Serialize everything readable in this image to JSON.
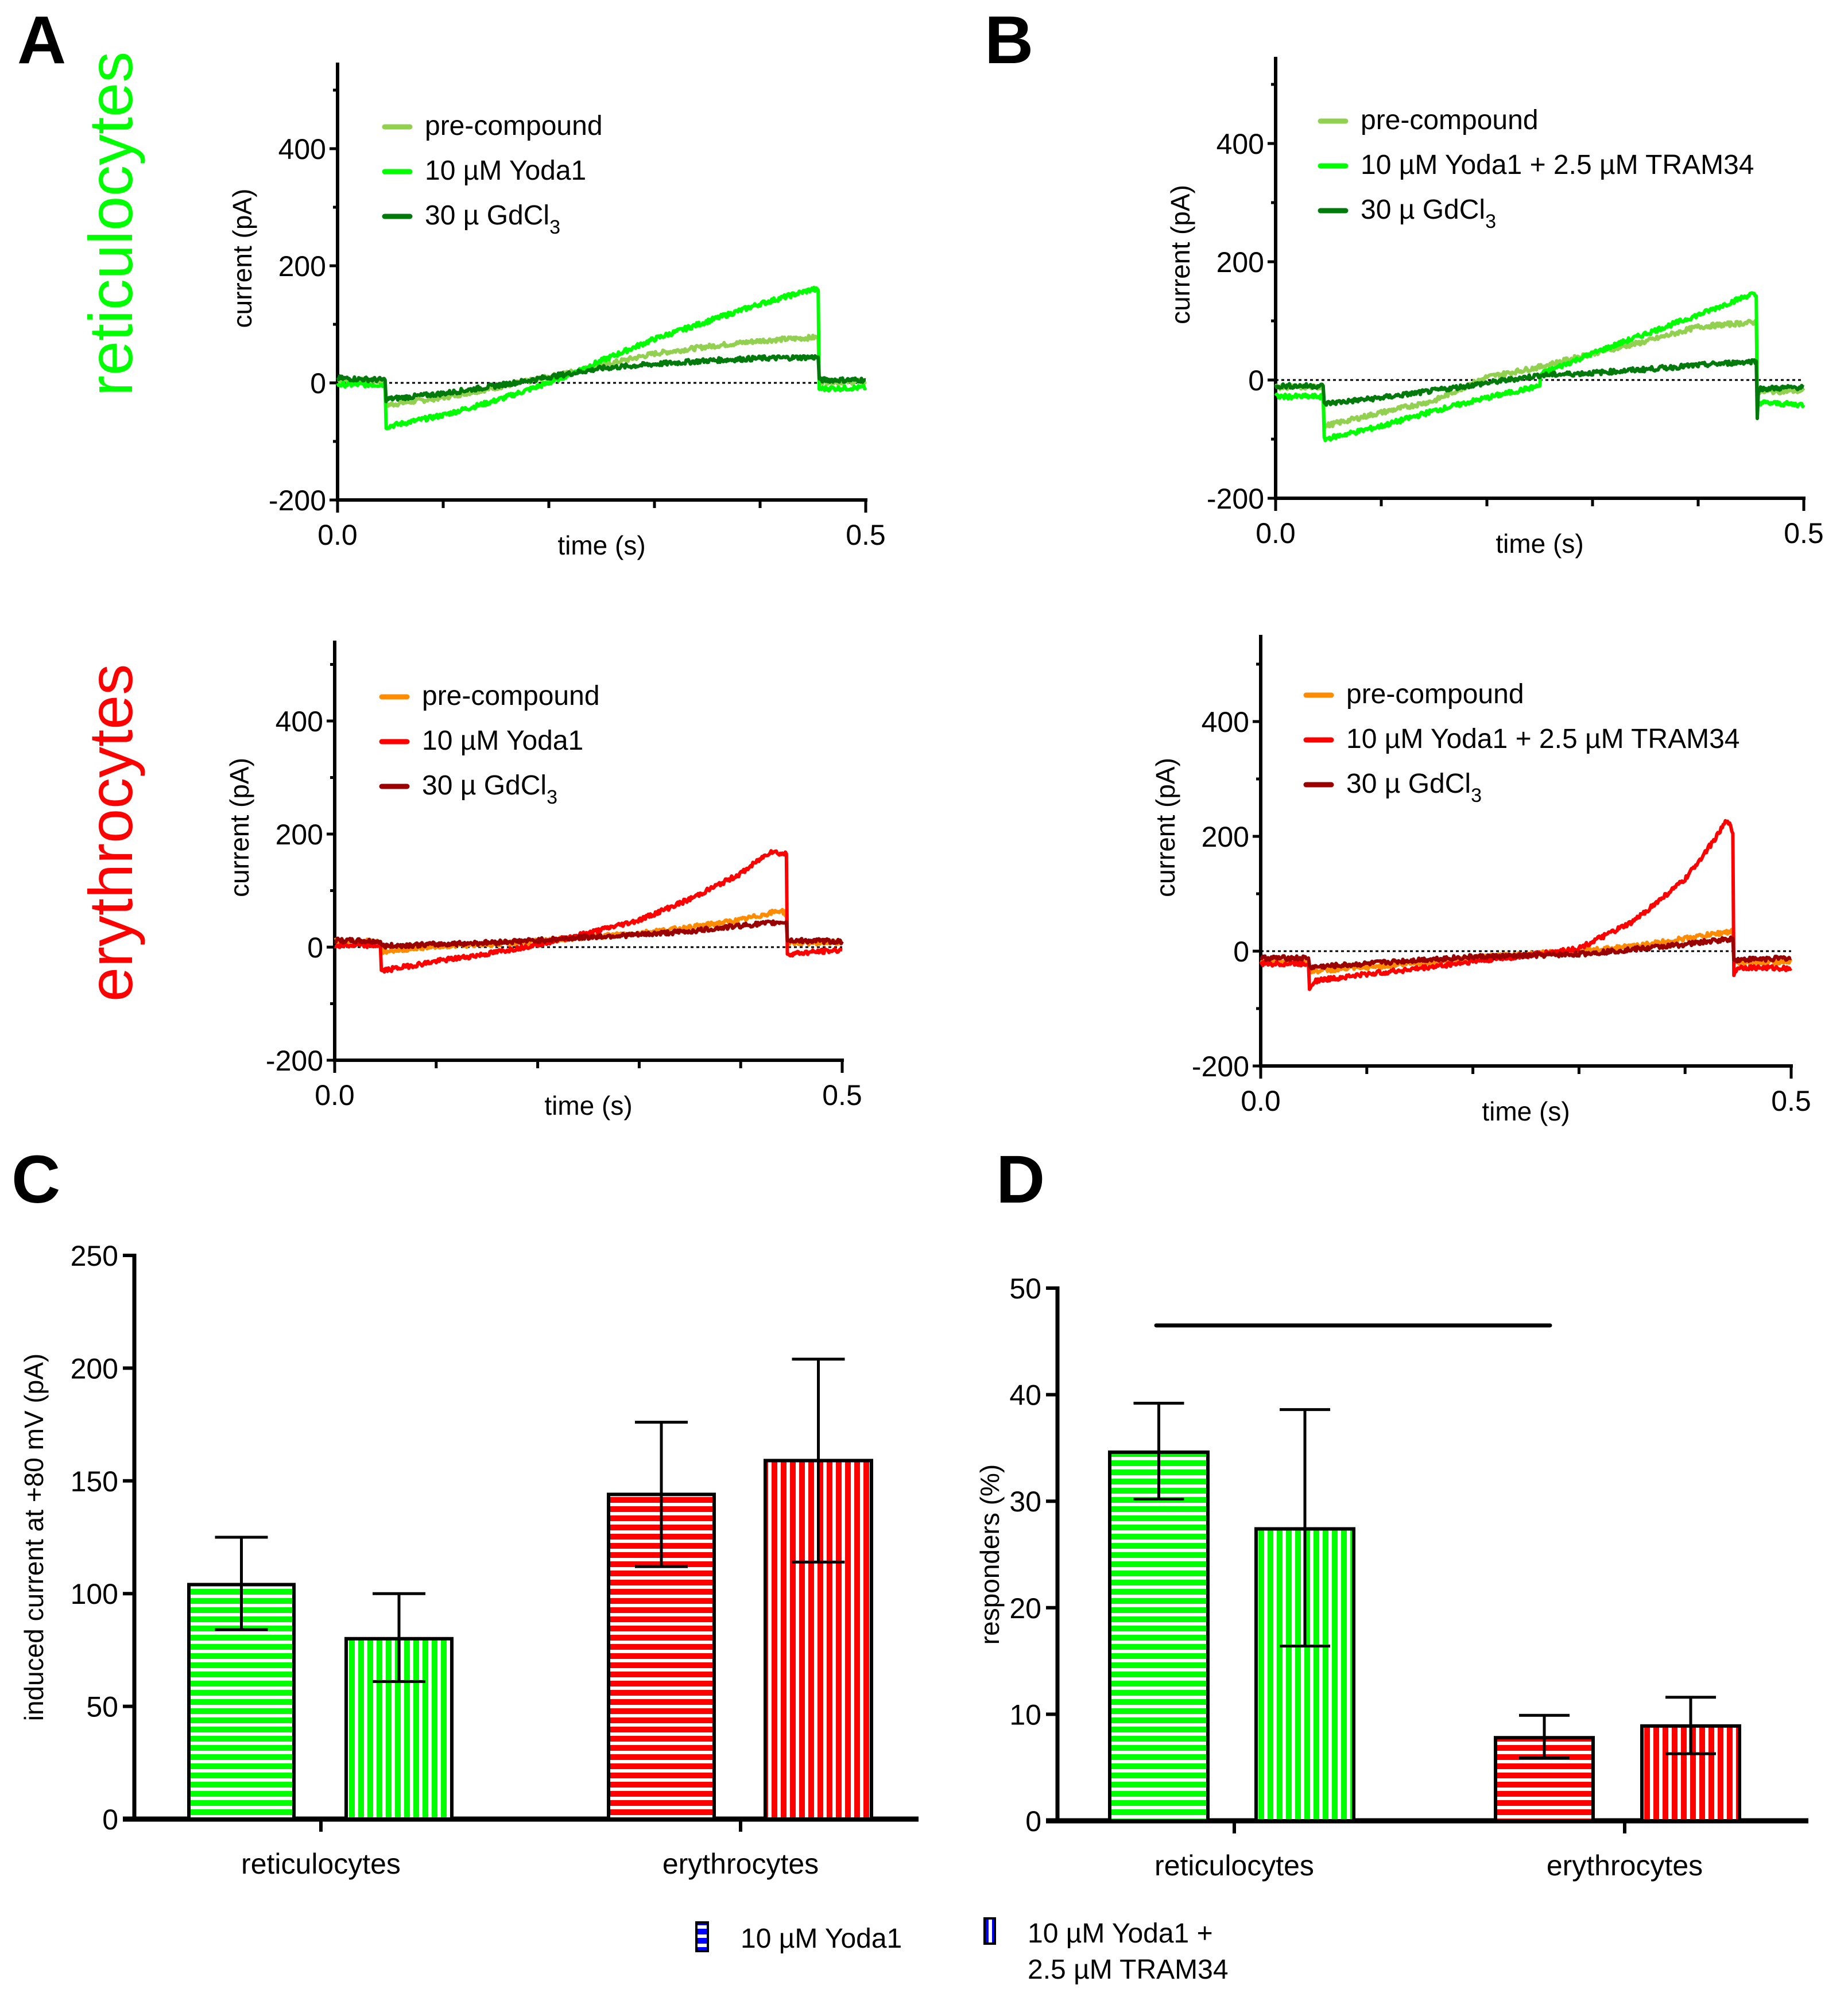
{
  "figure": {
    "panel_letters": [
      "A",
      "B",
      "C",
      "D"
    ],
    "row_labels": [
      {
        "text": "reticulocytes",
        "color": "#00FF00"
      },
      {
        "text": "erythrocytes",
        "color": "#FF0000"
      }
    ],
    "bottom_legend": [
      {
        "label": "10 µM Yoda1",
        "pattern": "horizontal",
        "color": "#0000FF"
      },
      {
        "label_line1": "10 µM Yoda1 +",
        "label_line2": "2.5 µM TRAM34",
        "pattern": "vertical",
        "color": "#0000FF"
      }
    ]
  },
  "chart_data": [
    {
      "id": "A-reticulocytes",
      "type": "line",
      "panel": "A",
      "xlabel": "time (s)",
      "ylabel": "current (pA)",
      "xlim": [
        0,
        0.5
      ],
      "ylim": [
        -200,
        550
      ],
      "xticks": [
        "0.0",
        "0.5"
      ],
      "yticks": [
        "-200",
        "0",
        "200",
        "400"
      ],
      "zero_line": "dotted",
      "legend_position": "top-left",
      "series": [
        {
          "name": "pre-compound",
          "color": "#92D050",
          "x": [
            0,
            0.045,
            0.046,
            0.1,
            0.15,
            0.2,
            0.25,
            0.3,
            0.35,
            0.4,
            0.455,
            0.456,
            0.5
          ],
          "y": [
            5,
            3,
            -38,
            -25,
            -8,
            10,
            30,
            50,
            62,
            72,
            78,
            2,
            2
          ]
        },
        {
          "name": "10 µM Yoda1",
          "sub": "",
          "color": "#00FF00",
          "x": [
            0,
            0.045,
            0.046,
            0.1,
            0.15,
            0.2,
            0.25,
            0.3,
            0.35,
            0.4,
            0.45,
            0.455,
            0.456,
            0.5
          ],
          "y": [
            -3,
            -3,
            -75,
            -55,
            -30,
            0,
            38,
            75,
            105,
            135,
            160,
            158,
            -10,
            -8
          ]
        },
        {
          "name": "30 µ GdCl",
          "sub": "3",
          "color": "#007A0A",
          "x": [
            0,
            0.045,
            0.046,
            0.1,
            0.15,
            0.2,
            0.25,
            0.3,
            0.35,
            0.4,
            0.455,
            0.456,
            0.5
          ],
          "y": [
            8,
            5,
            -28,
            -18,
            -5,
            10,
            25,
            32,
            38,
            42,
            44,
            5,
            5
          ]
        }
      ]
    },
    {
      "id": "B-reticulocytes",
      "type": "line",
      "panel": "B",
      "xlabel": "time (s)",
      "ylabel": "current (pA)",
      "xlim": [
        0,
        0.5
      ],
      "ylim": [
        -200,
        550
      ],
      "xticks": [
        "0.0",
        "0.5"
      ],
      "yticks": [
        "-200",
        "0",
        "200",
        "400"
      ],
      "zero_line": "dotted",
      "legend_position": "top-left",
      "series": [
        {
          "name": "pre-compound",
          "color": "#92D050",
          "x": [
            0,
            0.045,
            0.046,
            0.1,
            0.15,
            0.2,
            0.25,
            0.3,
            0.35,
            0.4,
            0.455,
            0.456,
            0.5
          ],
          "y": [
            -12,
            -12,
            -78,
            -55,
            -35,
            5,
            22,
            45,
            65,
            90,
            98,
            -20,
            -18
          ]
        },
        {
          "name": "10 µM Yoda1 + 2.5 µM TRAM34",
          "color": "#00FF00",
          "x": [
            0,
            0.045,
            0.046,
            0.1,
            0.15,
            0.2,
            0.25,
            0.251,
            0.3,
            0.35,
            0.4,
            0.45,
            0.455,
            0.456,
            0.5
          ],
          "y": [
            -28,
            -28,
            -100,
            -78,
            -52,
            -30,
            -10,
            10,
            45,
            78,
            110,
            145,
            142,
            -38,
            -42
          ]
        },
        {
          "name": "30 µ GdCl",
          "sub": "3",
          "color": "#007A0A",
          "x": [
            0,
            0.045,
            0.046,
            0.1,
            0.15,
            0.2,
            0.25,
            0.3,
            0.35,
            0.4,
            0.455,
            0.456,
            0.457,
            0.5
          ],
          "y": [
            -10,
            -10,
            -40,
            -30,
            -18,
            -5,
            8,
            12,
            18,
            25,
            32,
            -65,
            -15,
            -12
          ]
        }
      ]
    },
    {
      "id": "A-erythrocytes",
      "type": "line",
      "panel": "A",
      "xlabel": "time (s)",
      "ylabel": "current (pA)",
      "xlim": [
        0,
        0.5
      ],
      "ylim": [
        -200,
        550
      ],
      "xticks": [
        "0.0",
        "0.5"
      ],
      "yticks": [
        "-200",
        "0",
        "200",
        "400"
      ],
      "zero_line": "dotted",
      "legend_position": "top-left",
      "series": [
        {
          "name": "pre-compound",
          "color": "#FF8C00",
          "x": [
            0,
            0.045,
            0.046,
            0.1,
            0.15,
            0.2,
            0.25,
            0.3,
            0.35,
            0.4,
            0.44,
            0.445,
            0.446,
            0.5
          ],
          "y": [
            10,
            10,
            -8,
            2,
            5,
            10,
            18,
            25,
            35,
            48,
            65,
            58,
            8,
            8
          ]
        },
        {
          "name": "10 µM Yoda1",
          "color": "#FF0000",
          "x": [
            0,
            0.045,
            0.046,
            0.1,
            0.15,
            0.2,
            0.25,
            0.3,
            0.35,
            0.4,
            0.43,
            0.44,
            0.445,
            0.446,
            0.5
          ],
          "y": [
            3,
            3,
            -42,
            -25,
            -12,
            5,
            25,
            48,
            85,
            130,
            170,
            165,
            165,
            -12,
            -5
          ]
        },
        {
          "name": "30 µ GdCl",
          "sub": "3",
          "color": "#9B0000",
          "x": [
            0,
            0.045,
            0.046,
            0.1,
            0.15,
            0.2,
            0.25,
            0.3,
            0.35,
            0.4,
            0.445,
            0.446,
            0.5
          ],
          "y": [
            12,
            10,
            2,
            5,
            8,
            12,
            18,
            22,
            28,
            38,
            45,
            12,
            10
          ]
        }
      ]
    },
    {
      "id": "B-erythrocytes",
      "type": "line",
      "panel": "B",
      "xlabel": "time (s)",
      "ylabel": "current (pA)",
      "xlim": [
        0,
        0.5
      ],
      "ylim": [
        -200,
        550
      ],
      "xticks": [
        "0.0",
        "0.5"
      ],
      "yticks": [
        "-200",
        "0",
        "200",
        "400"
      ],
      "zero_line": "dotted",
      "legend_position": "top-left",
      "series": [
        {
          "name": "pre-compound",
          "color": "#FF8C00",
          "x": [
            0,
            0.045,
            0.046,
            0.1,
            0.15,
            0.2,
            0.25,
            0.3,
            0.35,
            0.4,
            0.445,
            0.446,
            0.5
          ],
          "y": [
            -18,
            -18,
            -35,
            -28,
            -20,
            -12,
            -5,
            0,
            8,
            22,
            35,
            -20,
            -18
          ]
        },
        {
          "name": "10 µM Yoda1 + 2.5 µM TRAM34",
          "color": "#FF0000",
          "x": [
            0,
            0.045,
            0.046,
            0.05,
            0.1,
            0.15,
            0.2,
            0.25,
            0.3,
            0.35,
            0.4,
            0.43,
            0.44,
            0.445,
            0.446,
            0.45,
            0.5
          ],
          "y": [
            -22,
            -22,
            -65,
            -52,
            -40,
            -30,
            -18,
            -8,
            5,
            50,
            125,
            200,
            230,
            205,
            -40,
            -28,
            -30
          ]
        },
        {
          "name": "30 µ GdCl",
          "sub": "3",
          "color": "#9B0000",
          "x": [
            0,
            0.045,
            0.046,
            0.1,
            0.15,
            0.2,
            0.25,
            0.3,
            0.35,
            0.4,
            0.445,
            0.446,
            0.5
          ],
          "y": [
            -12,
            -12,
            -28,
            -22,
            -15,
            -10,
            -8,
            -5,
            3,
            12,
            22,
            -15,
            -12
          ]
        }
      ]
    },
    {
      "id": "C",
      "type": "bar",
      "panel": "C",
      "title": "",
      "xlabel": "",
      "ylabel": "induced current at +80 mV (pA)",
      "ylim": [
        0,
        250
      ],
      "yticks": [
        "0",
        "50",
        "100",
        "150",
        "200",
        "250"
      ],
      "categories": [
        "reticulocytes",
        "erythrocytes"
      ],
      "category_colors": [
        "#00FF00",
        "#FF0000"
      ],
      "series": [
        {
          "name": "10 µM Yoda1",
          "pattern": "horizontal",
          "values": [
            104,
            144
          ],
          "err_low": [
            84,
            112
          ],
          "err_high": [
            125,
            176
          ]
        },
        {
          "name": "10 µM Yoda1 + 2.5 µM TRAM34",
          "pattern": "vertical",
          "values": [
            80,
            159
          ],
          "err_low": [
            61,
            114
          ],
          "err_high": [
            100,
            204
          ]
        }
      ]
    },
    {
      "id": "D",
      "type": "bar",
      "panel": "D",
      "title": "",
      "xlabel": "",
      "ylabel": "responders (%)",
      "ylim": [
        0,
        50
      ],
      "yticks": [
        "0",
        "10",
        "20",
        "30",
        "40",
        "50"
      ],
      "categories": [
        "reticulocytes",
        "erythrocytes"
      ],
      "category_colors": [
        "#00FF00",
        "#FF0000"
      ],
      "significance_bar": {
        "y": 46.5,
        "from": "reticulocytes / 10 µM Yoda1",
        "to": "erythrocytes / 10 µM Yoda1"
      },
      "series": [
        {
          "name": "10 µM Yoda1",
          "pattern": "horizontal",
          "values": [
            34.6,
            7.8
          ],
          "err_low": [
            30.2,
            5.9
          ],
          "err_high": [
            39.2,
            9.9
          ]
        },
        {
          "name": "10 µM Yoda1 + 2.5 µM TRAM34",
          "pattern": "vertical",
          "values": [
            27.4,
            8.9
          ],
          "err_low": [
            16.4,
            6.3
          ],
          "err_high": [
            38.6,
            11.6
          ]
        }
      ]
    }
  ]
}
